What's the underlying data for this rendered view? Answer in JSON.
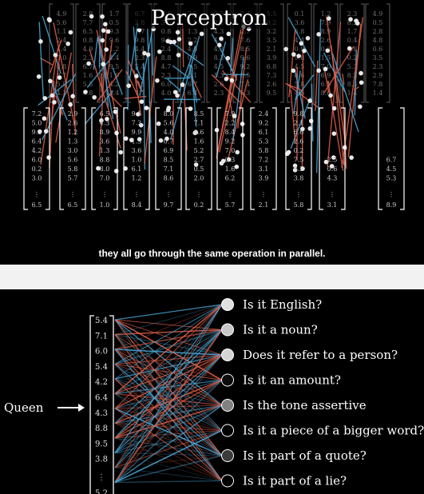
{
  "top_panel": {
    "title": "Perceptron",
    "caption": "they all go through the same operation in parallel.",
    "columns": [
      {
        "values": [
          "7.2",
          "5.0",
          "9.5",
          "6.4",
          "4.2",
          "6.0",
          "0.2",
          "3.0"
        ],
        "last": "6.5"
      },
      {
        "values": [
          "2.9",
          "2.6",
          "1.2",
          "1.3",
          "3.0",
          "5.6",
          "5.8",
          "5.7"
        ],
        "last": "6.5"
      },
      {
        "values": [
          "6.5",
          "4.3",
          "8.9",
          "3.6",
          "1.3",
          "8.8",
          "8.0",
          "7.0"
        ],
        "last": "1.0"
      },
      {
        "values": [
          "9.1",
          "7.3",
          "9.9",
          "1.5",
          "3.6",
          "1.0",
          "6.1",
          "1.2"
        ],
        "last": "8.4"
      },
      {
        "values": [
          "8.0",
          "5.6",
          "4.0",
          "0.7",
          "6.9",
          "8.5",
          "7.1",
          "8.6"
        ],
        "last": "9.7"
      },
      {
        "values": [
          "8.5",
          "7.1",
          "8.6",
          "1.6",
          "5.2",
          "2.7",
          "0.5",
          "2.0"
        ],
        "last": "0.2"
      },
      {
        "values": [
          "7.9",
          "2.2",
          "8.4",
          "9.2",
          "7.0",
          "0.3",
          "1.6",
          "6.2"
        ],
        "last": "5.7"
      },
      {
        "values": [
          "2.4",
          "9.2",
          "6.1",
          "5.3",
          "5.8",
          "7.2",
          "3.1",
          "3.9"
        ],
        "last": "2.1"
      },
      {
        "values": [
          "9.8",
          "2.1",
          "6.6",
          "2.6",
          "0.2",
          "7.5",
          "3.2",
          "3.8"
        ],
        "last": "5.8"
      },
      {
        "values": [
          "2.5",
          "0.6",
          "4.3"
        ],
        "last": "3.1"
      },
      {
        "values": [
          "6.7",
          "4.5",
          "5.3"
        ],
        "last": "8.9"
      }
    ]
  },
  "bottom_panel": {
    "input_label": "Queen",
    "input_values": [
      "5.4",
      "7.1",
      "6.0",
      "5.4",
      "4.2",
      "6.4",
      "4.3",
      "8.8",
      "9.5",
      "3.8"
    ],
    "last_value": "5.2",
    "questions": [
      {
        "text": "Is it English?",
        "activation": 0.95
      },
      {
        "text": "Is it a noun?",
        "activation": 0.85
      },
      {
        "text": "Does it refer to a person?",
        "activation": 0.9
      },
      {
        "text": "Is it an amount?",
        "activation": 0.05
      },
      {
        "text": "Is the tone assertive",
        "activation": 0.55
      },
      {
        "text": "Is it a piece of a bigger word?",
        "activation": 0.0
      },
      {
        "text": "Is it part of a quote?",
        "activation": 0.25
      },
      {
        "text": "Is it part of a lie?",
        "activation": 0.0
      }
    ]
  },
  "colors": {
    "positive_weight": "#e0604a",
    "negative_weight": "#4aa8d8",
    "background": "#000000",
    "divider": "#f2f2f2"
  }
}
